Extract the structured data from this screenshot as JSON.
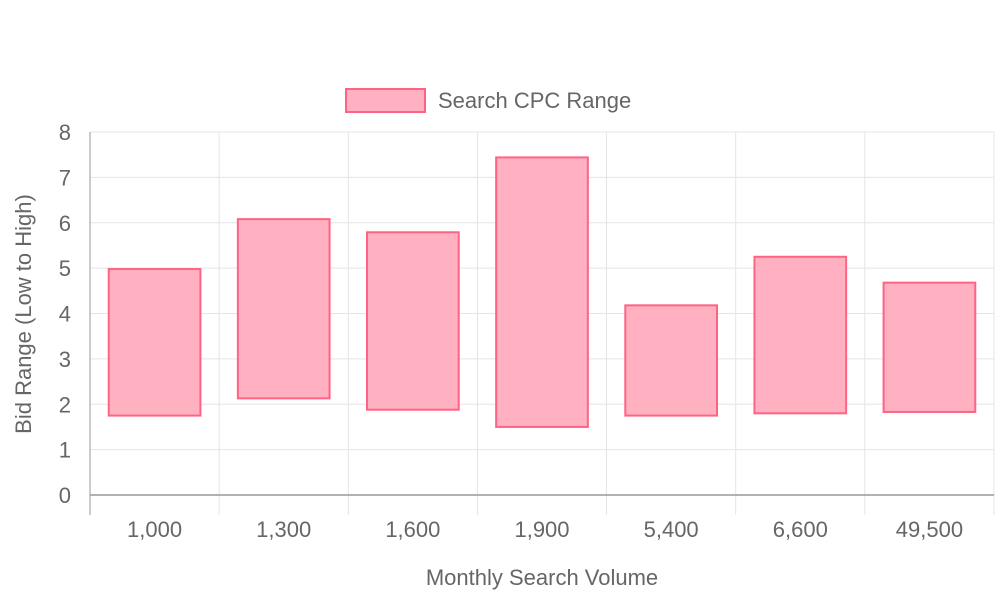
{
  "chart_data": {
    "type": "bar",
    "subtype": "floating-range",
    "categories": [
      "1,000",
      "1,300",
      "1,600",
      "1,900",
      "5,400",
      "6,600",
      "49,500"
    ],
    "series": [
      {
        "name": "Search CPC Range",
        "ranges": [
          [
            1.75,
            4.98
          ],
          [
            2.13,
            6.08
          ],
          [
            1.88,
            5.79
          ],
          [
            1.5,
            7.44
          ],
          [
            1.75,
            4.18
          ],
          [
            1.8,
            5.25
          ],
          [
            1.83,
            4.68
          ]
        ]
      }
    ],
    "xlabel": "Monthly Search Volume",
    "ylabel": "Bid Range (Low to High)",
    "ylim": [
      0,
      8
    ],
    "yticks": [
      "0",
      "1",
      "2",
      "3",
      "4",
      "5",
      "6",
      "7",
      "8"
    ],
    "grid": true,
    "legend": "top-center",
    "colors": {
      "bar_fill": "#ffb1c1",
      "bar_border": "#ff6384",
      "grid": "#e5e5e5",
      "axis": "#999999",
      "text": "#666666"
    }
  }
}
